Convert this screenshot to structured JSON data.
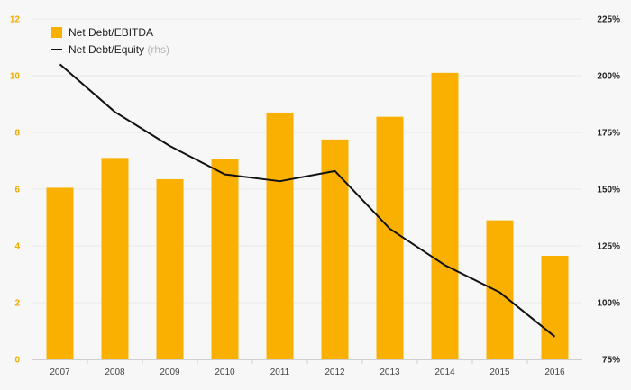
{
  "chart_data": {
    "type": "bar",
    "categories": [
      "2007",
      "2008",
      "2009",
      "2010",
      "2011",
      "2012",
      "2013",
      "2014",
      "2015",
      "2016"
    ],
    "series": [
      {
        "name": "Net Debt/EBITDA",
        "type": "bar",
        "axis": "left",
        "color": "#f9b000",
        "values": [
          6.05,
          7.1,
          6.35,
          7.05,
          8.7,
          7.75,
          8.55,
          10.1,
          4.9,
          3.65
        ]
      },
      {
        "name": "Net Debt/Equity",
        "legend_suffix": "(rhs)",
        "type": "line",
        "axis": "right",
        "color": "#111111",
        "values": [
          205,
          184,
          169,
          156.5,
          153.5,
          158,
          132.5,
          116.5,
          104.5,
          85
        ]
      }
    ],
    "y_left": {
      "ylim": [
        0,
        12
      ],
      "ticks": [
        "0",
        "2",
        "4",
        "6",
        "8",
        "10",
        "12"
      ]
    },
    "y_right": {
      "ylim": [
        75,
        225
      ],
      "ticks": [
        "75%",
        "100%",
        "125%",
        "150%",
        "175%",
        "200%",
        "225%"
      ]
    },
    "grid": true,
    "legend_position": "top-left"
  }
}
